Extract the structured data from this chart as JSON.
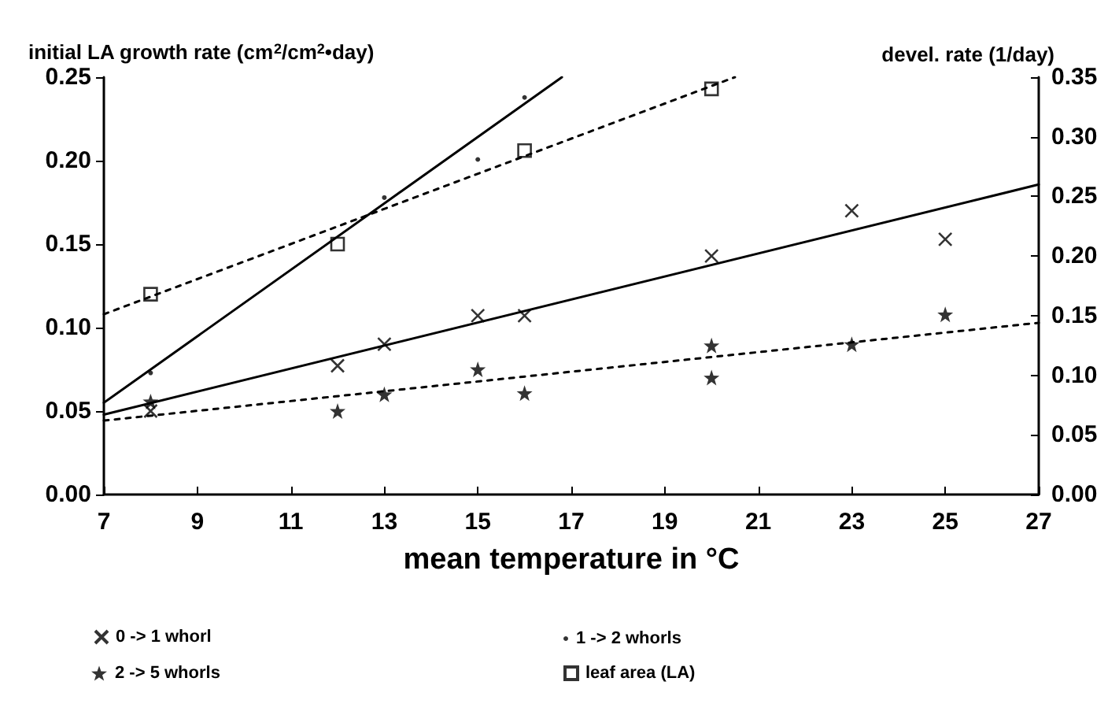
{
  "chart_data": {
    "type": "scatter",
    "xlabel": "mean temperature in °C",
    "ylabel": "initial LA growth rate (cm$^{2}$/cm$^{2}$•day)",
    "y2label": "devel. rate (1/day)",
    "xlim": [
      7,
      27
    ],
    "xticks": [
      7,
      9,
      11,
      13,
      15,
      17,
      19,
      21,
      23,
      25,
      27
    ],
    "ylim": [
      0,
      0.25
    ],
    "yticks": [
      {
        "value": 0,
        "label": "0.00"
      },
      {
        "value": 0.05,
        "label": "0.05"
      },
      {
        "value": 0.1,
        "label": "0.10"
      },
      {
        "value": 0.15,
        "label": "0.15"
      },
      {
        "value": 0.2,
        "label": "0.20"
      },
      {
        "value": 0.25,
        "label": "0.25"
      }
    ],
    "y2lim": [
      0,
      0.35
    ],
    "y2ticks": [
      {
        "value": 0,
        "label": "0.00"
      },
      {
        "value": 0.05,
        "label": "0.05"
      },
      {
        "value": 0.1,
        "label": "0.10"
      },
      {
        "value": 0.15,
        "label": "0.15"
      },
      {
        "value": 0.2,
        "label": "0.20"
      },
      {
        "value": 0.25,
        "label": "0.25"
      },
      {
        "value": 0.3,
        "label": "0.30"
      },
      {
        "value": 0.35,
        "label": "0.35"
      }
    ],
    "grid": false,
    "legend": "bottom",
    "series": [
      {
        "name": "0 -> 1 whorl",
        "axis": "y2",
        "marker": "cross",
        "color": "#000000",
        "x": [
          8,
          12,
          13,
          15,
          16,
          20,
          23,
          25
        ],
        "values": [
          0.07,
          0.108,
          0.126,
          0.15,
          0.15,
          0.2,
          0.238,
          0.214
        ]
      },
      {
        "name": "1 -> 2 whorls",
        "axis": "y2",
        "marker": "circle",
        "color": "#000000",
        "x": [
          8,
          12,
          13,
          15,
          16
        ],
        "values": [
          0.102,
          null,
          0.249,
          0.281,
          0.333
        ]
      },
      {
        "name": "2 -> 5 whorls",
        "axis": "y2",
        "marker": "star",
        "color": "#000000",
        "x": [
          8,
          12,
          13,
          15,
          16,
          20,
          20,
          23,
          25
        ],
        "values": [
          0.078,
          0.07,
          0.084,
          0.105,
          0.085,
          0.125,
          0.098,
          0.126,
          0.151
        ]
      },
      {
        "name": "leaf area (LA)",
        "marker": "square",
        "color": "#000000",
        "x": [
          8,
          12,
          16,
          20
        ],
        "values": [
          0.12,
          0.15,
          0.206,
          0.243
        ]
      },
      {
        "type": "line",
        "axis": "y2",
        "line_style": "solid",
        "color": "#000000",
        "x": [
          7,
          27
        ],
        "values": [
          0.067,
          0.26
        ]
      },
      {
        "type": "line",
        "axis": "y2",
        "line_style": "solid",
        "color": "#000000",
        "x": [
          7,
          16.8
        ],
        "values": [
          0.077,
          0.35
        ]
      },
      {
        "type": "line",
        "axis": "y2",
        "line_style": "dotted",
        "color": "#000000",
        "x": [
          7,
          27
        ],
        "values": [
          0.062,
          0.144
        ]
      },
      {
        "type": "line",
        "line_style": "dotted",
        "color": "#000000",
        "x": [
          7,
          20.5
        ],
        "values": [
          0.108,
          0.25
        ]
      }
    ]
  }
}
